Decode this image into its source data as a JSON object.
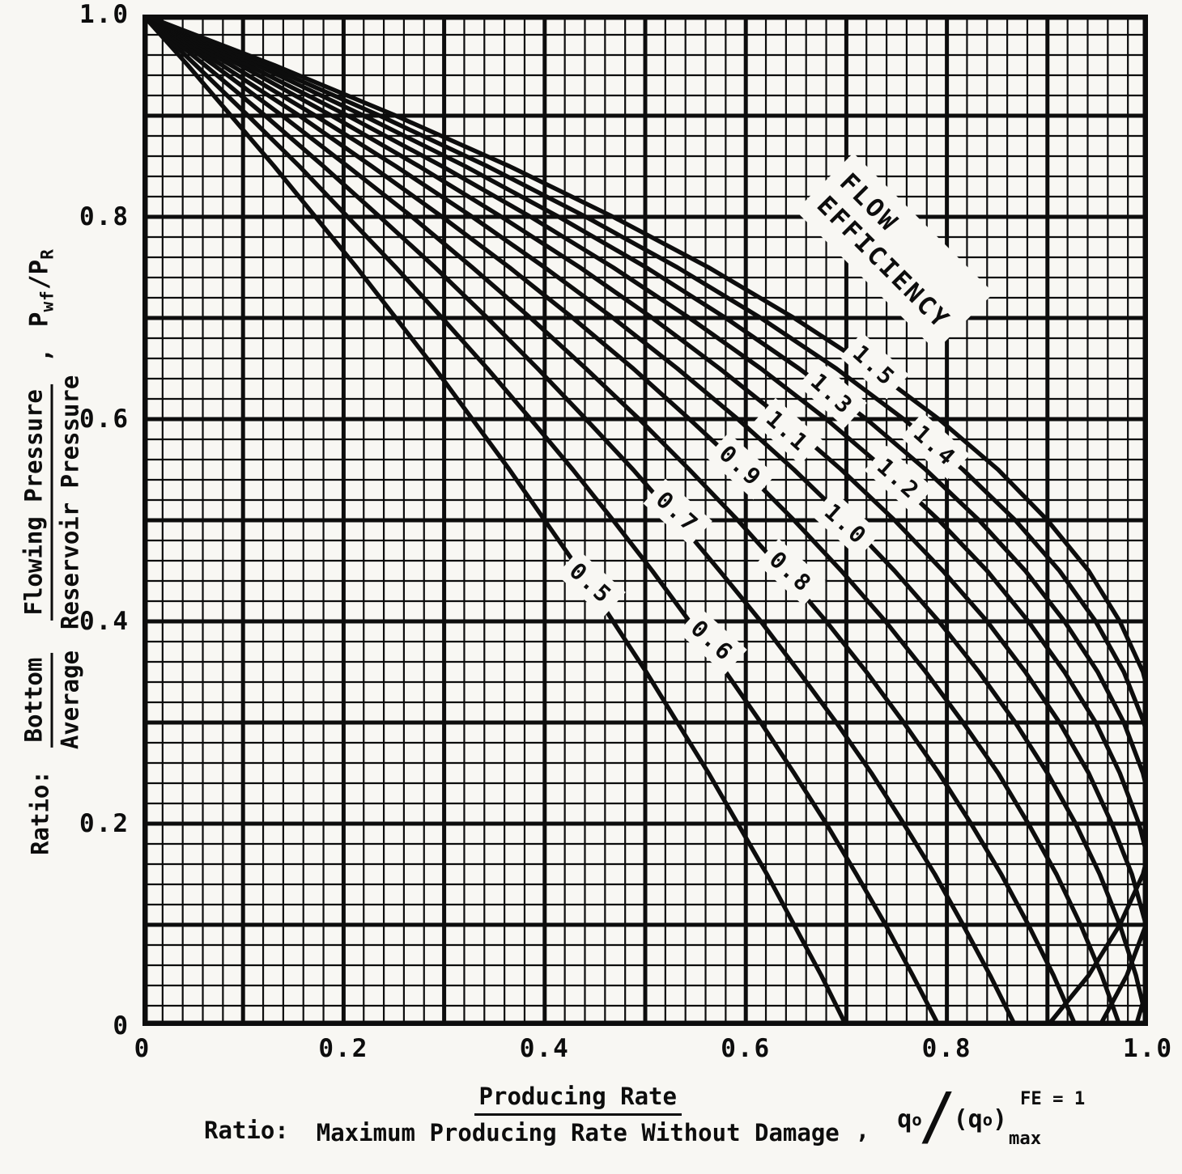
{
  "figure": {
    "paper_color": "#f8f7f3",
    "ink_color": "#0d0d0d"
  },
  "y_axis": {
    "tick_labels": [
      "1.0",
      "0.8",
      "0.6",
      "0.4",
      "0.2",
      "0"
    ],
    "tick_values": [
      1.0,
      0.8,
      0.6,
      0.4,
      0.2,
      0
    ],
    "title": {
      "ratio_word": "Ratio:",
      "frac1": {
        "num": "Bottom",
        "den": "Average"
      },
      "frac2": {
        "num": "Flowing Pressure",
        "den": "Reservoir Pressure"
      },
      "comma": ",",
      "sym_p1": "P",
      "sym_p1_sub": "wf",
      "sym_slash": "/",
      "sym_p2": "P",
      "sym_p2_sub": "R"
    }
  },
  "x_axis": {
    "tick_labels": [
      "0",
      "0.2",
      "0.4",
      "0.6",
      "0.8",
      "1.0"
    ],
    "tick_values": [
      0,
      0.2,
      0.4,
      0.6,
      0.8,
      1.0
    ],
    "title": {
      "ratio_word": "Ratio:",
      "numerator": "Producing Rate",
      "denominator": "Maximum Producing Rate Without Damage",
      "comma": ",",
      "sym_q": "q",
      "sym_q_sub": "o",
      "sym_slash": "/",
      "sym_open": "(q",
      "sym_open_sub": "o",
      "sym_close": ")",
      "sym_sup": "FE = 1",
      "sym_max": "max"
    }
  },
  "chart_data": {
    "type": "line",
    "title": "",
    "xlabel": "Ratio: Producing Rate / Maximum Producing Rate Without Damage, qo/(qo)max (FE = 1)",
    "ylabel": "Ratio: Bottom Flowing Pressure / Average Reservoir Pressure, Pwf/PR",
    "xlim": [
      0,
      1
    ],
    "ylim": [
      0,
      1
    ],
    "grid": {
      "minor_step": 0.02,
      "major_step": 0.1,
      "on": true
    },
    "legend_position": "labels-on-curves",
    "series": [
      {
        "name": "FE 0.5",
        "fe": 0.5,
        "points": [
          [
            0,
            1
          ],
          [
            0.045,
            0.95
          ],
          [
            0.088,
            0.9
          ],
          [
            0.131,
            0.85
          ],
          [
            0.172,
            0.8
          ],
          [
            0.213,
            0.75
          ],
          [
            0.252,
            0.7
          ],
          [
            0.291,
            0.65
          ],
          [
            0.328,
            0.6
          ],
          [
            0.365,
            0.55
          ],
          [
            0.4,
            0.5
          ],
          [
            0.435,
            0.45
          ],
          [
            0.468,
            0.4
          ],
          [
            0.501,
            0.35
          ],
          [
            0.532,
            0.3
          ],
          [
            0.563,
            0.25
          ],
          [
            0.592,
            0.2
          ],
          [
            0.621,
            0.15
          ],
          [
            0.648,
            0.1
          ],
          [
            0.675,
            0.05
          ],
          [
            0.7,
            0
          ]
        ]
      },
      {
        "name": "FE 0.6",
        "fe": 0.6,
        "points": [
          [
            0,
            1
          ],
          [
            0.053,
            0.95
          ],
          [
            0.105,
            0.9
          ],
          [
            0.156,
            0.85
          ],
          [
            0.204,
            0.8
          ],
          [
            0.252,
            0.75
          ],
          [
            0.298,
            0.7
          ],
          [
            0.343,
            0.65
          ],
          [
            0.386,
            0.6
          ],
          [
            0.428,
            0.55
          ],
          [
            0.468,
            0.5
          ],
          [
            0.507,
            0.45
          ],
          [
            0.544,
            0.4
          ],
          [
            0.58,
            0.35
          ],
          [
            0.615,
            0.3
          ],
          [
            0.648,
            0.25
          ],
          [
            0.68,
            0.2
          ],
          [
            0.71,
            0.15
          ],
          [
            0.739,
            0.1
          ],
          [
            0.766,
            0.05
          ],
          [
            0.792,
            0
          ]
        ]
      },
      {
        "name": "FE 0.7",
        "fe": 0.7,
        "points": [
          [
            0,
            1
          ],
          [
            0.062,
            0.95
          ],
          [
            0.122,
            0.9
          ],
          [
            0.18,
            0.85
          ],
          [
            0.236,
            0.8
          ],
          [
            0.291,
            0.75
          ],
          [
            0.343,
            0.7
          ],
          [
            0.393,
            0.65
          ],
          [
            0.441,
            0.6
          ],
          [
            0.488,
            0.55
          ],
          [
            0.532,
            0.5
          ],
          [
            0.574,
            0.45
          ],
          [
            0.615,
            0.4
          ],
          [
            0.653,
            0.35
          ],
          [
            0.69,
            0.3
          ],
          [
            0.725,
            0.25
          ],
          [
            0.757,
            0.2
          ],
          [
            0.788,
            0.15
          ],
          [
            0.816,
            0.1
          ],
          [
            0.843,
            0.05
          ],
          [
            0.868,
            0
          ]
        ]
      },
      {
        "name": "FE 0.8",
        "fe": 0.8,
        "points": [
          [
            0,
            1
          ],
          [
            0.071,
            0.95
          ],
          [
            0.139,
            0.9
          ],
          [
            0.204,
            0.85
          ],
          [
            0.268,
            0.8
          ],
          [
            0.328,
            0.75
          ],
          [
            0.386,
            0.7
          ],
          [
            0.441,
            0.65
          ],
          [
            0.494,
            0.6
          ],
          [
            0.544,
            0.55
          ],
          [
            0.592,
            0.5
          ],
          [
            0.637,
            0.45
          ],
          [
            0.68,
            0.4
          ],
          [
            0.72,
            0.35
          ],
          [
            0.757,
            0.3
          ],
          [
            0.792,
            0.25
          ],
          [
            0.824,
            0.2
          ],
          [
            0.854,
            0.15
          ],
          [
            0.881,
            0.1
          ],
          [
            0.906,
            0.05
          ],
          [
            0.928,
            0
          ]
        ]
      },
      {
        "name": "FE 0.9",
        "fe": 0.9,
        "points": [
          [
            0,
            1
          ],
          [
            0.079,
            0.95
          ],
          [
            0.156,
            0.9
          ],
          [
            0.228,
            0.85
          ],
          [
            0.298,
            0.8
          ],
          [
            0.365,
            0.75
          ],
          [
            0.428,
            0.7
          ],
          [
            0.488,
            0.65
          ],
          [
            0.544,
            0.6
          ],
          [
            0.598,
            0.55
          ],
          [
            0.648,
            0.5
          ],
          [
            0.695,
            0.45
          ],
          [
            0.739,
            0.4
          ],
          [
            0.779,
            0.35
          ],
          [
            0.816,
            0.3
          ],
          [
            0.851,
            0.25
          ],
          [
            0.881,
            0.2
          ],
          [
            0.909,
            0.15
          ],
          [
            0.933,
            0.1
          ],
          [
            0.954,
            0.05
          ],
          [
            0.972,
            0
          ]
        ]
      },
      {
        "name": "FE 1.0",
        "fe": 1.0,
        "points": [
          [
            0,
            1
          ],
          [
            0.088,
            0.95
          ],
          [
            0.172,
            0.9
          ],
          [
            0.252,
            0.85
          ],
          [
            0.328,
            0.8
          ],
          [
            0.4,
            0.75
          ],
          [
            0.468,
            0.7
          ],
          [
            0.532,
            0.65
          ],
          [
            0.592,
            0.6
          ],
          [
            0.648,
            0.55
          ],
          [
            0.7,
            0.5
          ],
          [
            0.748,
            0.45
          ],
          [
            0.792,
            0.4
          ],
          [
            0.832,
            0.35
          ],
          [
            0.868,
            0.3
          ],
          [
            0.9,
            0.25
          ],
          [
            0.928,
            0.2
          ],
          [
            0.952,
            0.15
          ],
          [
            0.972,
            0.1
          ],
          [
            0.988,
            0.05
          ],
          [
            1.0,
            0
          ]
        ]
      },
      {
        "name": "FE 1.1",
        "fe": 1.1,
        "points": [
          [
            0,
            1
          ],
          [
            0.097,
            0.95
          ],
          [
            0.188,
            0.9
          ],
          [
            0.275,
            0.85
          ],
          [
            0.357,
            0.8
          ],
          [
            0.435,
            0.75
          ],
          [
            0.507,
            0.7
          ],
          [
            0.574,
            0.65
          ],
          [
            0.637,
            0.6
          ],
          [
            0.695,
            0.55
          ],
          [
            0.748,
            0.5
          ],
          [
            0.796,
            0.45
          ],
          [
            0.84,
            0.4
          ],
          [
            0.878,
            0.35
          ],
          [
            0.912,
            0.3
          ],
          [
            0.941,
            0.25
          ],
          [
            0.964,
            0.2
          ],
          [
            0.984,
            0.15
          ],
          [
            0.998,
            0.1
          ],
          [
            1.007,
            0.05
          ],
          [
            1.012,
            0
          ]
        ]
      },
      {
        "name": "FE 1.2",
        "fe": 1.2,
        "points": [
          [
            0,
            1
          ],
          [
            0.105,
            0.95
          ],
          [
            0.204,
            0.9
          ],
          [
            0.298,
            0.85
          ],
          [
            0.386,
            0.8
          ],
          [
            0.468,
            0.75
          ],
          [
            0.544,
            0.7
          ],
          [
            0.615,
            0.65
          ],
          [
            0.68,
            0.6
          ],
          [
            0.739,
            0.55
          ],
          [
            0.792,
            0.5
          ],
          [
            0.84,
            0.45
          ],
          [
            0.881,
            0.4
          ],
          [
            0.917,
            0.35
          ],
          [
            0.948,
            0.3
          ],
          [
            0.972,
            0.25
          ],
          [
            0.991,
            0.2
          ],
          [
            1.004,
            0.15
          ],
          [
            1.011,
            0.1
          ],
          [
            1.012,
            0.05
          ],
          [
            1.008,
            0
          ]
        ]
      },
      {
        "name": "FE 1.3",
        "fe": 1.3,
        "points": [
          [
            0,
            1
          ],
          [
            0.114,
            0.95
          ],
          [
            0.22,
            0.9
          ],
          [
            0.321,
            0.85
          ],
          [
            0.414,
            0.8
          ],
          [
            0.501,
            0.75
          ],
          [
            0.58,
            0.7
          ],
          [
            0.653,
            0.65
          ],
          [
            0.72,
            0.6
          ],
          [
            0.779,
            0.55
          ],
          [
            0.832,
            0.5
          ],
          [
            0.878,
            0.45
          ],
          [
            0.917,
            0.4
          ],
          [
            0.95,
            0.35
          ],
          [
            0.976,
            0.3
          ],
          [
            0.995,
            0.25
          ],
          [
            1.007,
            0.2
          ],
          [
            1.012,
            0.15
          ],
          [
            1.011,
            0.1
          ],
          [
            1.003,
            0.05
          ],
          [
            0.988,
            0
          ]
        ]
      },
      {
        "name": "FE 1.4",
        "fe": 1.4,
        "points": [
          [
            0,
            1
          ],
          [
            0.122,
            0.95
          ],
          [
            0.236,
            0.9
          ],
          [
            0.343,
            0.85
          ],
          [
            0.441,
            0.8
          ],
          [
            0.532,
            0.75
          ],
          [
            0.615,
            0.7
          ],
          [
            0.69,
            0.65
          ],
          [
            0.757,
            0.6
          ],
          [
            0.816,
            0.55
          ],
          [
            0.868,
            0.5
          ],
          [
            0.912,
            0.45
          ],
          [
            0.948,
            0.4
          ],
          [
            0.976,
            0.35
          ],
          [
            0.996,
            0.3
          ],
          [
            1.008,
            0.25
          ],
          [
            1.012,
            0.2
          ],
          [
            1.009,
            0.15
          ],
          [
            0.998,
            0.1
          ],
          [
            0.979,
            0.05
          ],
          [
            0.952,
            0
          ]
        ]
      },
      {
        "name": "FE 1.5",
        "fe": 1.5,
        "points": [
          [
            0,
            1
          ],
          [
            0.131,
            0.95
          ],
          [
            0.252,
            0.9
          ],
          [
            0.365,
            0.85
          ],
          [
            0.468,
            0.8
          ],
          [
            0.563,
            0.75
          ],
          [
            0.648,
            0.7
          ],
          [
            0.725,
            0.65
          ],
          [
            0.792,
            0.6
          ],
          [
            0.851,
            0.55
          ],
          [
            0.9,
            0.5
          ],
          [
            0.941,
            0.45
          ],
          [
            0.972,
            0.4
          ],
          [
            0.995,
            0.35
          ],
          [
            1.008,
            0.3
          ],
          [
            1.013,
            0.25
          ],
          [
            1.008,
            0.2
          ],
          [
            0.995,
            0.15
          ],
          [
            0.972,
            0.1
          ],
          [
            0.941,
            0.05
          ],
          [
            0.9,
            0
          ]
        ]
      }
    ],
    "curve_labels": [
      {
        "text": "0.5",
        "x": 0.446,
        "y": 0.438
      },
      {
        "text": "0.6",
        "x": 0.567,
        "y": 0.381
      },
      {
        "text": "0.7",
        "x": 0.532,
        "y": 0.508
      },
      {
        "text": "0.8",
        "x": 0.645,
        "y": 0.449
      },
      {
        "text": "0.9",
        "x": 0.595,
        "y": 0.554
      },
      {
        "text": "1.0",
        "x": 0.7,
        "y": 0.496
      },
      {
        "text": "1.1",
        "x": 0.642,
        "y": 0.588
      },
      {
        "text": "1.2",
        "x": 0.752,
        "y": 0.541
      },
      {
        "text": "1.3",
        "x": 0.686,
        "y": 0.625
      },
      {
        "text": "1.4",
        "x": 0.788,
        "y": 0.574
      },
      {
        "text": "1.5",
        "x": 0.728,
        "y": 0.653
      }
    ],
    "flow_label": {
      "line1": "FLOW",
      "line2": "EFFICIENCY",
      "x": 0.748,
      "y": 0.766,
      "rotation_deg": 45
    }
  }
}
